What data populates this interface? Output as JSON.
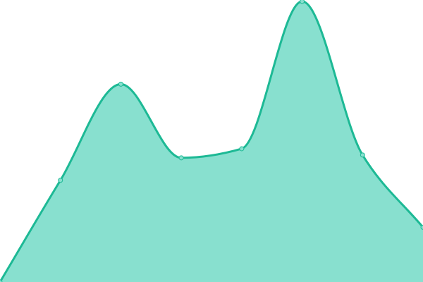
{
  "chart_data": {
    "type": "area",
    "title": "",
    "xlabel": "",
    "ylabel": "",
    "x": [
      0,
      1,
      2,
      3,
      4,
      5,
      6,
      7
    ],
    "values": [
      0,
      145,
      282,
      177,
      190,
      400,
      181,
      78
    ],
    "ylim": [
      0,
      400
    ],
    "grid": false,
    "curve": "smooth",
    "colors": {
      "line": "#1db995",
      "fill": "#88e0cf",
      "marker_fill": "#88e0cf"
    }
  }
}
